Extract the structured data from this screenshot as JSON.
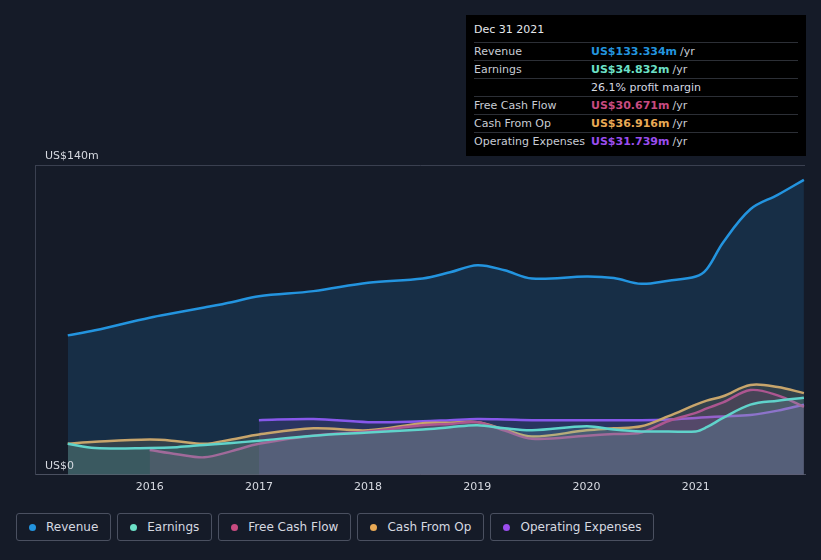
{
  "chart_data": {
    "type": "line",
    "x": [
      2015.25,
      2015.5,
      2016,
      2016.25,
      2016.5,
      2016.75,
      2017,
      2017.5,
      2018,
      2018.5,
      2018.75,
      2019,
      2019.25,
      2019.5,
      2020,
      2020.25,
      2020.5,
      2020.75,
      2021,
      2021.1,
      2021.25,
      2021.5,
      2021.75,
      2021.99
    ],
    "xlim": [
      2014.95,
      2022
    ],
    "xticks": [
      2016,
      2017,
      2018,
      2019,
      2020,
      2021
    ],
    "ylim": [
      0,
      140
    ],
    "yticks": [
      {
        "value": 0,
        "label": "US$0"
      },
      {
        "value": 140,
        "label": "US$140m"
      }
    ],
    "grid": true,
    "legend": "bottom",
    "series": [
      {
        "name": "Revenue",
        "color": "#2394df",
        "values": [
          63,
          65.3,
          71,
          73.3,
          75.6,
          78,
          80.7,
          83,
          86.8,
          88.7,
          91.5,
          94.7,
          92.4,
          88.7,
          89.6,
          88.9,
          86.3,
          87.7,
          89.6,
          92.9,
          105,
          120,
          126.5,
          133.3
        ]
      },
      {
        "name": "Earnings",
        "color": "#6ce0c7",
        "values": [
          14,
          12.1,
          12.1,
          12.5,
          13.5,
          14.4,
          15.4,
          17.7,
          19.1,
          20.5,
          21.5,
          22.4,
          21,
          20.1,
          21.9,
          20.5,
          19.6,
          19.6,
          19.6,
          21.5,
          25.7,
          31.7,
          33.5,
          34.8
        ]
      },
      {
        "name": "Free Cash Flow",
        "color": "#c84b80",
        "values": [
          null,
          null,
          11.2,
          9.3,
          7.9,
          10.7,
          14,
          17.7,
          19.6,
          22.4,
          23,
          23.8,
          20,
          16.3,
          17.7,
          18.4,
          19.1,
          24.3,
          28,
          30,
          32.7,
          38.3,
          35.9,
          30.7
        ]
      },
      {
        "name": "Cash From Op",
        "color": "#e8a955",
        "values": [
          14,
          14.9,
          15.9,
          15.2,
          14,
          16,
          18.2,
          21,
          20.1,
          23.3,
          23.5,
          23.8,
          20.5,
          17.3,
          20.1,
          21,
          21.9,
          26.5,
          31.7,
          33.5,
          35.5,
          40.6,
          39.7,
          36.9
        ]
      },
      {
        "name": "Operating Expenses",
        "color": "#9b4dee",
        "values": [
          null,
          null,
          null,
          null,
          null,
          null,
          24.7,
          25.2,
          23.8,
          24.2,
          24.7,
          25.2,
          25,
          24.7,
          24.7,
          24.7,
          24.7,
          25,
          25.7,
          26,
          26.4,
          27,
          29,
          31.7
        ]
      }
    ],
    "annotations": [
      {
        "title": "Dec 31 2021",
        "rows": [
          {
            "label": "Revenue",
            "value": "US$133.334m",
            "unit": "/yr"
          },
          {
            "label": "Earnings",
            "value": "US$34.832m",
            "unit": "/yr"
          },
          {
            "text": "26.1% profit margin"
          },
          {
            "label": "Free Cash Flow",
            "value": "US$30.671m",
            "unit": "/yr"
          },
          {
            "label": "Cash From Op",
            "value": "US$36.916m",
            "unit": "/yr"
          },
          {
            "label": "Operating Expenses",
            "value": "US$31.739m",
            "unit": "/yr"
          }
        ]
      }
    ]
  }
}
